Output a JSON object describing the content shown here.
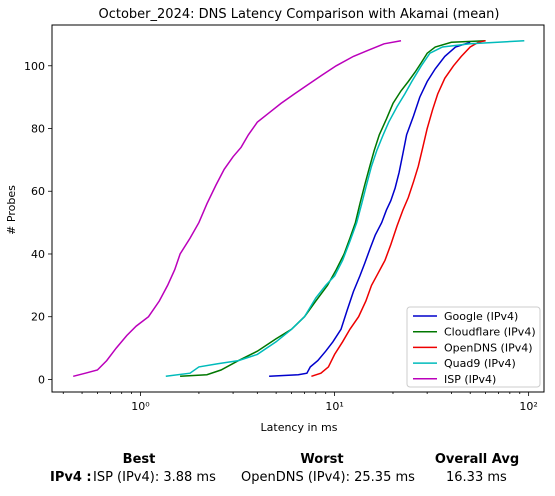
{
  "chart_data": {
    "type": "line",
    "title": "October_2024: DNS Latency Comparison with Akamai (mean)",
    "xlabel": "Latency in ms",
    "ylabel": "# Probes",
    "xscale": "log",
    "xlim": [
      0.35,
      120
    ],
    "ylim": [
      -4,
      113
    ],
    "xticks": [
      {
        "value": 1,
        "label": "10⁰"
      },
      {
        "value": 10,
        "label": "10¹"
      },
      {
        "value": 100,
        "label": "10²"
      }
    ],
    "yticks": [
      0,
      20,
      40,
      60,
      80,
      100
    ],
    "grid": false,
    "legend_position": "bottom-right",
    "series": [
      {
        "name": "Google (IPv4)",
        "color": "#0000cc",
        "points": [
          [
            4.6,
            1
          ],
          [
            6.5,
            1.5
          ],
          [
            7.2,
            2
          ],
          [
            7.5,
            4
          ],
          [
            8.2,
            6
          ],
          [
            9.0,
            9
          ],
          [
            9.8,
            12
          ],
          [
            10.8,
            16
          ],
          [
            11.6,
            22
          ],
          [
            12.5,
            28
          ],
          [
            13.5,
            33
          ],
          [
            14.3,
            37
          ],
          [
            15.3,
            42
          ],
          [
            16.2,
            46
          ],
          [
            17.5,
            50
          ],
          [
            18.5,
            54
          ],
          [
            19.5,
            57
          ],
          [
            20.5,
            61
          ],
          [
            21.5,
            66
          ],
          [
            22.5,
            72
          ],
          [
            23.5,
            78
          ],
          [
            25.5,
            84
          ],
          [
            27.5,
            90
          ],
          [
            30,
            95
          ],
          [
            33,
            99
          ],
          [
            37,
            103
          ],
          [
            42,
            106
          ],
          [
            50,
            107.5
          ]
        ]
      },
      {
        "name": "Cloudflare (IPv4)",
        "color": "#007700",
        "points": [
          [
            1.6,
            1
          ],
          [
            2.2,
            1.5
          ],
          [
            2.6,
            3
          ],
          [
            3.2,
            6
          ],
          [
            4.0,
            9
          ],
          [
            5.0,
            13
          ],
          [
            6.0,
            16
          ],
          [
            7.0,
            20
          ],
          [
            8.0,
            25
          ],
          [
            9.2,
            30
          ],
          [
            10.2,
            35
          ],
          [
            11.2,
            40
          ],
          [
            12.0,
            45
          ],
          [
            12.8,
            50
          ],
          [
            13.5,
            56
          ],
          [
            14.3,
            62
          ],
          [
            15.2,
            68
          ],
          [
            16.0,
            73
          ],
          [
            17.0,
            78
          ],
          [
            18.5,
            83
          ],
          [
            20,
            88
          ],
          [
            22,
            92
          ],
          [
            24,
            95
          ],
          [
            26,
            98
          ],
          [
            28,
            101
          ],
          [
            30,
            104
          ],
          [
            33,
            106
          ],
          [
            40,
            107.5
          ],
          [
            60,
            108
          ]
        ]
      },
      {
        "name": "OpenDNS (IPv4)",
        "color": "#ee0000",
        "points": [
          [
            7.6,
            1
          ],
          [
            8.5,
            2
          ],
          [
            9.3,
            4
          ],
          [
            10.0,
            8
          ],
          [
            11.0,
            12
          ],
          [
            12.0,
            16
          ],
          [
            13.3,
            20
          ],
          [
            14.5,
            25
          ],
          [
            15.5,
            30
          ],
          [
            16.8,
            34
          ],
          [
            18.2,
            38
          ],
          [
            19.5,
            43
          ],
          [
            21,
            49
          ],
          [
            22.5,
            54
          ],
          [
            24,
            58
          ],
          [
            25.5,
            63
          ],
          [
            27,
            68
          ],
          [
            28.5,
            74
          ],
          [
            30,
            80
          ],
          [
            32,
            86
          ],
          [
            34,
            91
          ],
          [
            37,
            96
          ],
          [
            41,
            100
          ],
          [
            45,
            103
          ],
          [
            50,
            106
          ],
          [
            55,
            107.5
          ],
          [
            60,
            108
          ]
        ]
      },
      {
        "name": "Quad9 (IPv4)",
        "color": "#00bbbb",
        "points": [
          [
            1.35,
            1
          ],
          [
            1.8,
            2
          ],
          [
            2.0,
            4
          ],
          [
            2.5,
            5
          ],
          [
            3.2,
            6
          ],
          [
            4.0,
            8
          ],
          [
            5.0,
            12
          ],
          [
            6.0,
            16
          ],
          [
            7.0,
            20
          ],
          [
            8.0,
            26
          ],
          [
            9.0,
            30
          ],
          [
            10.0,
            33
          ],
          [
            11.0,
            38
          ],
          [
            12.0,
            44
          ],
          [
            13.0,
            50
          ],
          [
            13.8,
            56
          ],
          [
            14.6,
            62
          ],
          [
            15.5,
            68
          ],
          [
            16.5,
            73
          ],
          [
            17.8,
            78
          ],
          [
            19,
            82
          ],
          [
            21,
            87
          ],
          [
            23,
            91
          ],
          [
            25,
            95
          ],
          [
            28,
            100
          ],
          [
            31,
            104
          ],
          [
            36,
            106
          ],
          [
            50,
            107
          ],
          [
            95,
            108
          ]
        ]
      },
      {
        "name": "ISP (IPv4)",
        "color": "#bb00bb",
        "points": [
          [
            0.45,
            1
          ],
          [
            0.52,
            2
          ],
          [
            0.6,
            3
          ],
          [
            0.67,
            6
          ],
          [
            0.75,
            10
          ],
          [
            0.85,
            14
          ],
          [
            0.95,
            17
          ],
          [
            1.1,
            20
          ],
          [
            1.25,
            25
          ],
          [
            1.38,
            30
          ],
          [
            1.5,
            35
          ],
          [
            1.6,
            40
          ],
          [
            1.8,
            45
          ],
          [
            2.0,
            50
          ],
          [
            2.2,
            56
          ],
          [
            2.45,
            62
          ],
          [
            2.7,
            67
          ],
          [
            3.0,
            71
          ],
          [
            3.3,
            74
          ],
          [
            3.6,
            78
          ],
          [
            4.0,
            82
          ],
          [
            4.6,
            85
          ],
          [
            5.3,
            88
          ],
          [
            6.2,
            91
          ],
          [
            7.3,
            94
          ],
          [
            8.6,
            97
          ],
          [
            10.2,
            100
          ],
          [
            12.5,
            103
          ],
          [
            15,
            105
          ],
          [
            18,
            107
          ],
          [
            22,
            108
          ]
        ]
      }
    ]
  },
  "summary": {
    "best_header": "Best",
    "worst_header": "Worst",
    "avg_header": "Overall Avg",
    "row_label": "IPv4 :",
    "best_value": "ISP (IPv4): 3.88 ms",
    "worst_value": "OpenDNS (IPv4): 25.35 ms",
    "avg_value": "16.33 ms"
  }
}
